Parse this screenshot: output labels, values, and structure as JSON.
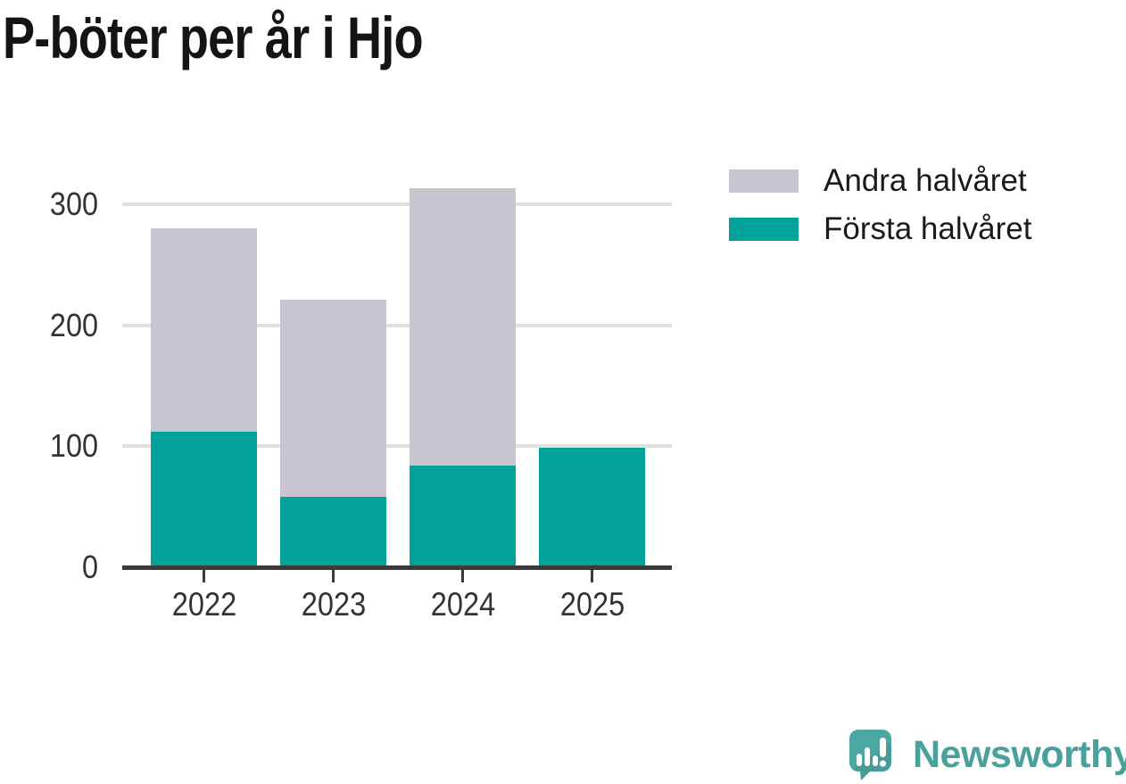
{
  "title": "P-böter per år i Hjo",
  "legend": {
    "items": [
      {
        "label": "Andra halvåret",
        "series": "andra",
        "color": "#c8c5d0"
      },
      {
        "label": "Första halvåret",
        "series": "forsta",
        "color": "#00a29a"
      }
    ],
    "position": "top-right"
  },
  "chart_data": {
    "type": "bar",
    "stacked": true,
    "title": "P-böter per år i Hjo",
    "categories": [
      "2022",
      "2023",
      "2024",
      "2025"
    ],
    "series": [
      {
        "name": "Första halvåret",
        "color": "#00a29a",
        "values": [
          112,
          58,
          84,
          99
        ]
      },
      {
        "name": "Andra halvåret",
        "color": "#c8c5d0",
        "values": [
          168,
          163,
          229,
          0
        ]
      }
    ],
    "totals": [
      280,
      221,
      313,
      99
    ],
    "xlabel": "",
    "ylabel": "",
    "ylim": [
      0,
      330
    ],
    "yticks": [
      0,
      100,
      200,
      300
    ],
    "ytick_labels": [
      "0",
      "100",
      "200",
      "300"
    ],
    "grid": true,
    "gridline_color": "#e0e0e0",
    "axis_color": "#3a3a3a",
    "legend_position": "top-right"
  },
  "branding": {
    "logo_text": "Newsworthy",
    "logo_color": "#4aa09b",
    "logo_icon": "speech-bubble-bar-chart-icon"
  }
}
